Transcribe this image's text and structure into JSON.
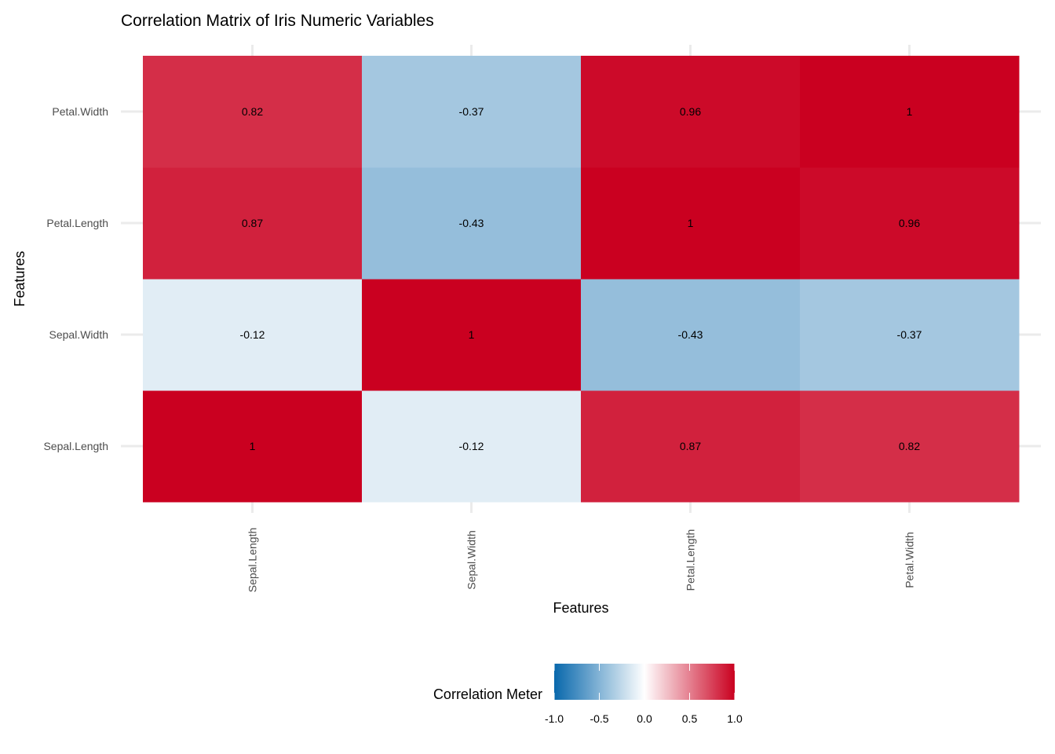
{
  "chart_data": {
    "type": "heatmap",
    "title": "Correlation Matrix of Iris Numeric Variables",
    "xlabel": "Features",
    "ylabel": "Features",
    "x_categories": [
      "Sepal.Length",
      "Sepal.Width",
      "Petal.Length",
      "Petal.Width"
    ],
    "y_categories": [
      "Sepal.Length",
      "Sepal.Width",
      "Petal.Length",
      "Petal.Width"
    ],
    "values": [
      [
        1,
        -0.12,
        0.87,
        0.82
      ],
      [
        -0.12,
        1,
        -0.43,
        -0.37
      ],
      [
        0.87,
        -0.43,
        1,
        0.96
      ],
      [
        0.82,
        -0.37,
        0.96,
        1
      ]
    ],
    "cell_labels": [
      [
        "1",
        "-0.12",
        "0.87",
        "0.82"
      ],
      [
        "-0.12",
        "1",
        "-0.43",
        "-0.37"
      ],
      [
        "0.87",
        "-0.43",
        "1",
        "0.96"
      ],
      [
        "0.82",
        "-0.37",
        "0.96",
        "1"
      ]
    ],
    "legend": {
      "title": "Correlation Meter",
      "position": "bottom",
      "range": [
        -1,
        1
      ],
      "ticks": [
        -1.0,
        -0.5,
        0.0,
        0.5,
        1.0
      ],
      "tick_labels": [
        "-1.0",
        "-0.5",
        "0.0",
        "0.5",
        "1.0"
      ],
      "colors": [
        "#0868ac",
        "#ffffff",
        "#ca0020"
      ]
    },
    "grid": true
  }
}
